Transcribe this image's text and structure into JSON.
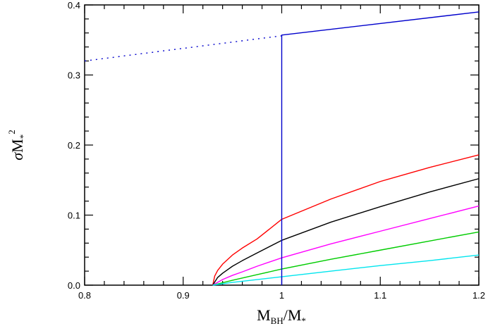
{
  "chart_data": {
    "type": "line",
    "xlabel": {
      "main": "M",
      "sub": "BH",
      "sep": "/M",
      "sub2": "*"
    },
    "ylabel": {
      "sigma": "σ",
      "main": "M",
      "sub": "*",
      "sup": "2"
    },
    "xlim": [
      0.8,
      1.2
    ],
    "ylim": [
      0.0,
      0.4
    ],
    "x_ticks": [
      "0.8",
      "0.9",
      "1",
      "1.1",
      "1.2"
    ],
    "x_tick_values": [
      0.8,
      0.9,
      1.0,
      1.1,
      1.2
    ],
    "y_ticks": [
      "0.0",
      "0.1",
      "0.2",
      "0.3",
      "0.4"
    ],
    "y_tick_values": [
      0.0,
      0.1,
      0.2,
      0.3,
      0.4
    ],
    "grid": false,
    "series": [
      {
        "color": "#ff0000",
        "x": [
          0.93,
          0.932,
          0.935,
          0.94,
          0.95,
          0.96,
          0.975,
          1.0,
          1.05,
          1.1,
          1.15,
          1.2
        ],
        "y": [
          0.0,
          0.013,
          0.021,
          0.03,
          0.043,
          0.053,
          0.066,
          0.094,
          0.123,
          0.148,
          0.168,
          0.186
        ]
      },
      {
        "color": "#000000",
        "x": [
          0.93,
          0.935,
          0.94,
          0.95,
          0.96,
          0.975,
          1.0,
          1.05,
          1.1,
          1.15,
          1.2
        ],
        "y": [
          0.0,
          0.011,
          0.017,
          0.027,
          0.035,
          0.046,
          0.064,
          0.09,
          0.112,
          0.133,
          0.152
        ]
      },
      {
        "color": "#ff00ff",
        "x": [
          0.93,
          0.94,
          0.95,
          0.96,
          0.975,
          1.0,
          1.05,
          1.1,
          1.15,
          1.2
        ],
        "y": [
          0.0,
          0.008,
          0.014,
          0.019,
          0.027,
          0.039,
          0.059,
          0.077,
          0.095,
          0.113
        ]
      },
      {
        "color": "#00cc00",
        "x": [
          0.93,
          0.95,
          0.975,
          1.0,
          1.05,
          1.1,
          1.15,
          1.2
        ],
        "y": [
          0.0,
          0.007,
          0.015,
          0.023,
          0.037,
          0.05,
          0.063,
          0.076
        ]
      },
      {
        "color": "#00e5ee",
        "x": [
          0.93,
          0.95,
          0.975,
          1.0,
          1.05,
          1.1,
          1.15,
          1.2
        ],
        "y": [
          0.0,
          0.004,
          0.008,
          0.012,
          0.02,
          0.028,
          0.035,
          0.043
        ]
      },
      {
        "color": "#0000cc",
        "dashed": true,
        "x": [
          0.8,
          1.0
        ],
        "y": [
          0.32,
          0.356
        ]
      },
      {
        "color": "#0000cc",
        "x": [
          1.0,
          1.0,
          1.2
        ],
        "y": [
          0.0,
          0.357,
          0.39
        ]
      }
    ]
  }
}
